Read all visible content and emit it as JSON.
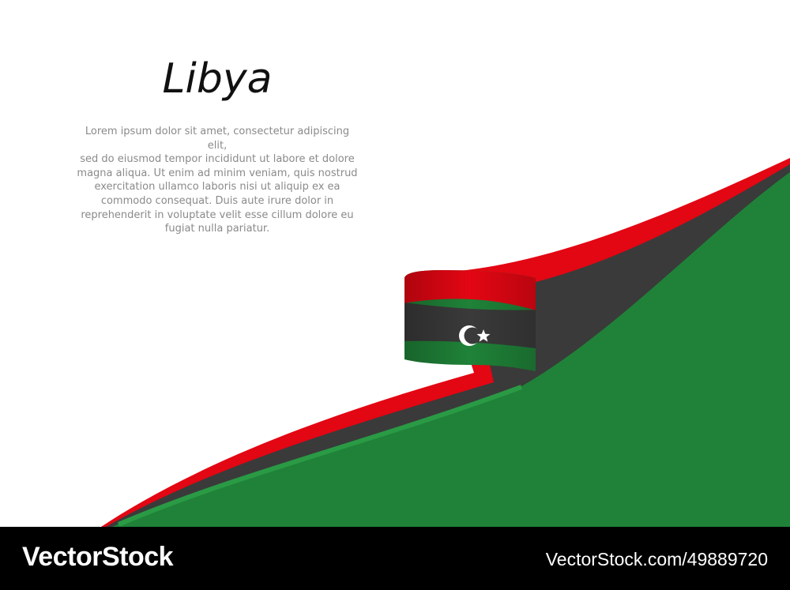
{
  "title": "Libya",
  "body_text": "Lorem ipsum dolor sit amet, consectetur adipiscing elit,\nsed do eiusmod tempor incididunt ut labore et dolore\nmagna aliqua. Ut enim ad minim veniam, quis nostrud\nexercitation ullamco laboris nisi ut aliquip ex ea\ncommodo consequat. Duis aute irure dolor in\nreprehenderit in voluptate velit esse cillum dolore eu\nfugiat nulla pariatur.",
  "flag_colors": {
    "red": "#e30613",
    "black": "#3a3a3a",
    "green": "#1f8238",
    "emblem": "#ffffff"
  },
  "emblem_icons": [
    "crescent-icon",
    "star-icon"
  ],
  "footer": {
    "brand": "VectorStock",
    "image_id": "VectorStock.com/49889720"
  }
}
